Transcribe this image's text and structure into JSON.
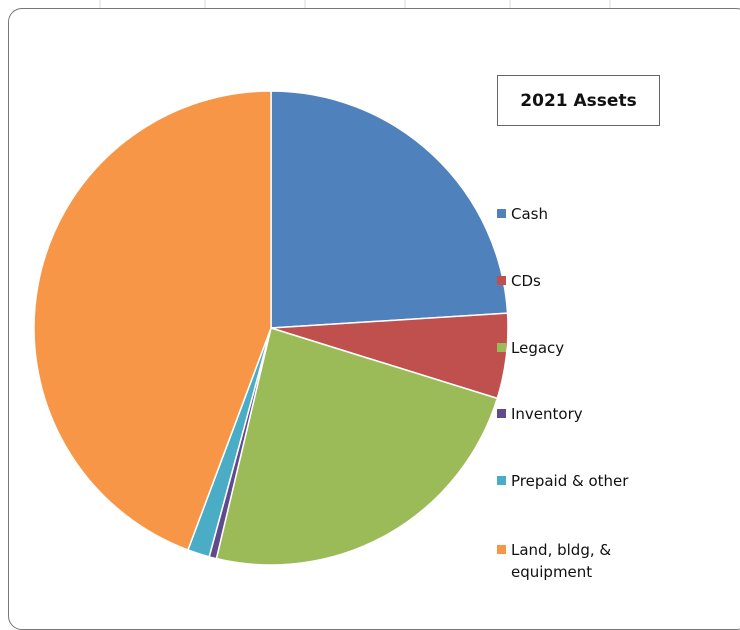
{
  "chart_data": {
    "type": "pie",
    "title": "2021 Assets",
    "categories": [
      "Cash",
      "CDs",
      "Legacy",
      "Inventory",
      "Prepaid & other",
      "Land, bldg, & equipment"
    ],
    "values": [
      24,
      5.8,
      23.9,
      0.5,
      1.5,
      44.3
    ],
    "colors": [
      "#4f81bd",
      "#c0504d",
      "#9bbb59",
      "#5f4a8b",
      "#4bacc6",
      "#f79646"
    ]
  }
}
